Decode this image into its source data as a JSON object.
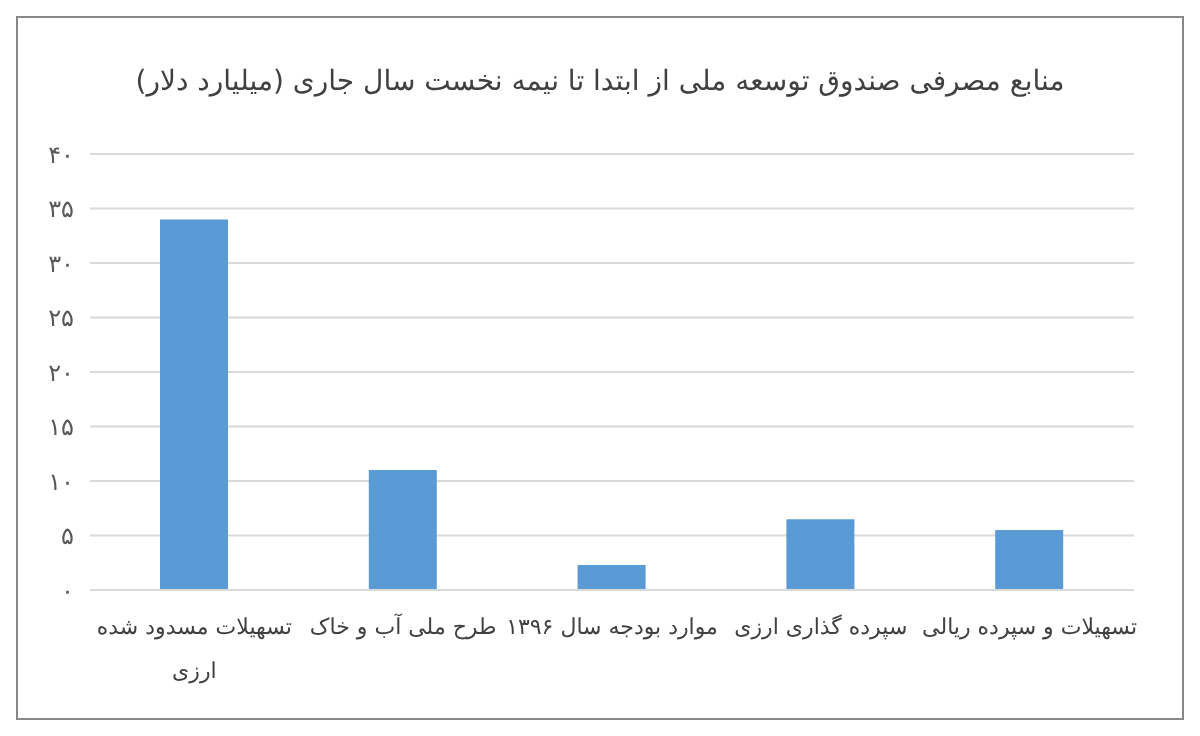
{
  "chart_data": {
    "type": "bar",
    "title": "منابع مصرفی صندوق توسعه ملی از ابتدا تا نیمه نخست سال جاری (میلیارد دلار)",
    "categories": [
      "تسهیلات مسدود شده ارزی",
      "طرح ملی آب و خاک",
      "موارد بودجه سال ۱۳۹۶",
      "سپرده گذاری ارزی",
      "تسهیلات و سپرده ریالی"
    ],
    "values": [
      34,
      11,
      2.3,
      6.5,
      5.5
    ],
    "color": "#5b9bd5",
    "ylim": [
      0,
      40
    ],
    "yticks": [
      {
        "value": 0,
        "label": "۰"
      },
      {
        "value": 5,
        "label": "۵"
      },
      {
        "value": 10,
        "label": "۱۰"
      },
      {
        "value": 15,
        "label": "۱۵"
      },
      {
        "value": 20,
        "label": "۲۰"
      },
      {
        "value": 25,
        "label": "۲۵"
      },
      {
        "value": 30,
        "label": "۳۰"
      },
      {
        "value": 35,
        "label": "۳۵"
      },
      {
        "value": 40,
        "label": "۴۰"
      }
    ],
    "grid": "y"
  }
}
